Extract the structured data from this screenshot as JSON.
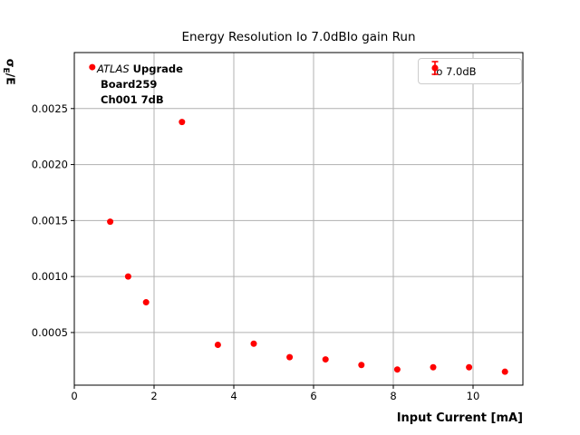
{
  "title": "Energy Resolution Io 7.0dBIo gain Run",
  "axes": {
    "xlabel": "Input Current [mA]",
    "ylabel_sigma": "σ",
    "ylabel_sub": "E",
    "ylabel_rest": "/E"
  },
  "annotation": {
    "line1_italic": "ATLAS",
    "line1_bold": " Upgrade",
    "line2": "Board259",
    "line3": "Ch001 7dB"
  },
  "legend": {
    "label": "Io 7.0dB",
    "marker": "errorbar-dot"
  },
  "colors": {
    "marker": "#ff0000",
    "grid": "#b0b0b0",
    "spine": "#000000",
    "legend_border": "#cccccc",
    "background": "#ffffff"
  },
  "chart_data": {
    "type": "scatter",
    "title": "Energy Resolution Io 7.0dBIo gain Run",
    "xlabel": "Input Current [mA]",
    "ylabel": "σ_E/E",
    "series": [
      {
        "name": "Io 7.0dB",
        "color": "#ff0000",
        "marker": "circle-with-errorbars",
        "x": [
          0.45,
          0.9,
          1.35,
          1.8,
          2.7,
          3.6,
          4.5,
          5.4,
          6.3,
          7.2,
          8.1,
          9.0,
          9.9,
          10.8
        ],
        "y": [
          0.00287,
          0.00149,
          0.001,
          0.00077,
          0.00238,
          0.00039,
          0.0004,
          0.00028,
          0.00026,
          0.00021,
          0.00017,
          0.00019,
          0.00019,
          0.00015
        ]
      }
    ],
    "xlim": [
      0,
      11.25
    ],
    "ylim": [
      3e-05,
      0.003
    ],
    "xticks": [
      0,
      2,
      4,
      6,
      8,
      10
    ],
    "xtick_labels": [
      "0",
      "2",
      "4",
      "6",
      "8",
      "10"
    ],
    "yticks": [
      0.0005,
      0.001,
      0.0015,
      0.002,
      0.0025
    ],
    "ytick_labels": [
      "0.0005",
      "0.0010",
      "0.0015",
      "0.0020",
      "0.0025"
    ],
    "grid": true,
    "legend_position": "upper right",
    "annotation_text": "ATLAS Upgrade\nBoard259\nCh001 7dB"
  }
}
